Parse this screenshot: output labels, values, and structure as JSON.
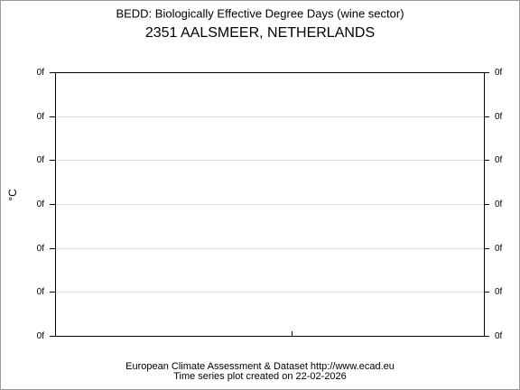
{
  "chart_data": {
    "type": "line",
    "title": "BEDD: Biologically Effective Degree Days (wine sector)",
    "subtitle": "2351 AALSMEER, NETHERLANDS",
    "y_label": "°C",
    "annotations": [
      "European Climate Assessment & Dataset  http://www.ecad.eu",
      "Time series plot created on 22-02-2026"
    ],
    "series": [],
    "ylim": [
      0,
      6
    ],
    "yticks": [
      {
        "value": 0,
        "label": "0f"
      },
      {
        "value": 1,
        "label": "0f"
      },
      {
        "value": 2,
        "label": "0f"
      },
      {
        "value": 3,
        "label": "0f"
      },
      {
        "value": 4,
        "label": "0f"
      },
      {
        "value": 5,
        "label": "0f"
      },
      {
        "value": 6,
        "label": "0f"
      }
    ],
    "grid": true
  }
}
